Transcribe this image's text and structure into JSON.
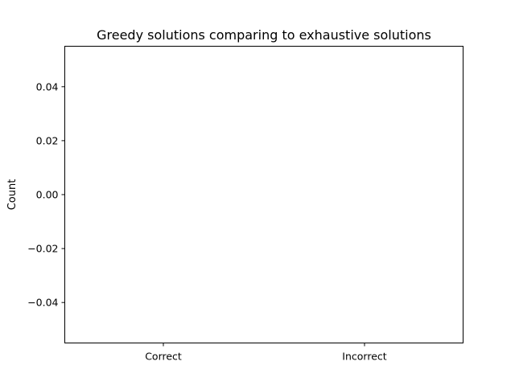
{
  "chart_data": {
    "type": "bar",
    "title": "Greedy solutions comparing to exhaustive solutions",
    "xlabel": "",
    "ylabel": "Count",
    "categories": [
      "Correct",
      "Incorrect"
    ],
    "values": [
      0,
      0
    ],
    "ylim": [
      -0.055,
      0.055
    ],
    "yticks": [
      0.04,
      0.02,
      0.0,
      -0.02,
      -0.04
    ],
    "ytick_labels": [
      "0.04",
      "0.02",
      "0.00",
      "−0.02",
      "−0.04"
    ],
    "grid": false,
    "colors": {
      "axis": "#000000",
      "background": "#ffffff"
    }
  }
}
